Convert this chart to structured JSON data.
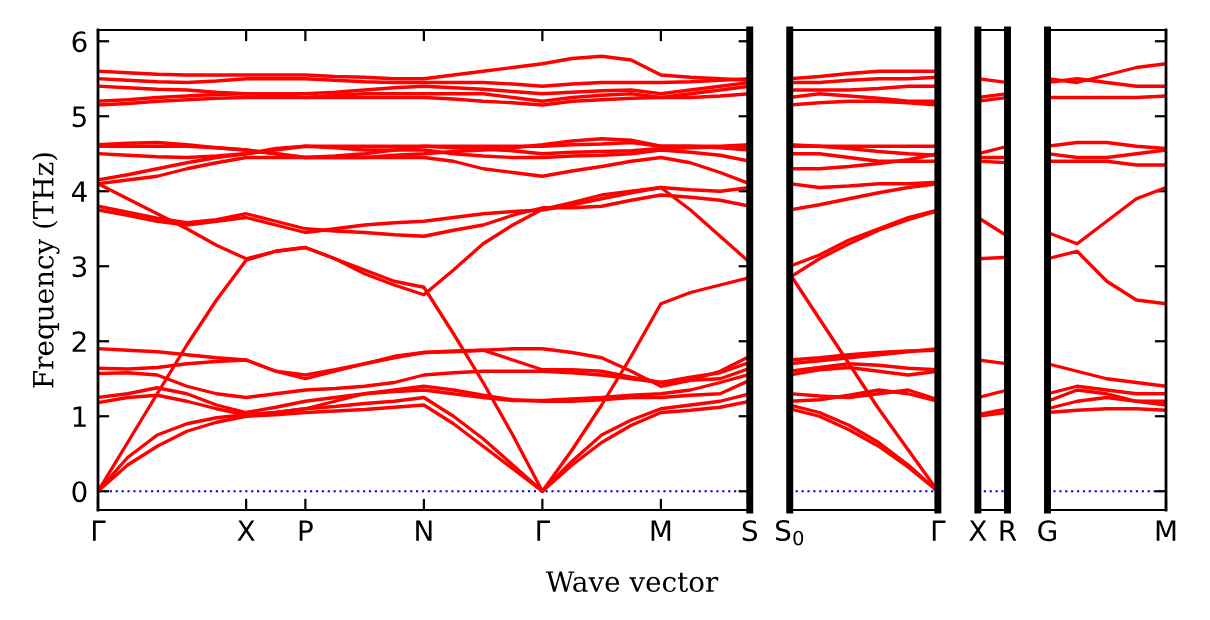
{
  "chart_data": [
    {
      "type": "line",
      "ylabel": "Frequency (THz)",
      "xlabel": "Wave vector",
      "line_style": "solid",
      "marker": "none",
      "grid": false,
      "categories": [
        "Γ",
        null,
        null,
        null,
        null,
        "X",
        null,
        "P",
        null,
        null,
        null,
        "N",
        null,
        null,
        null,
        "Γ",
        null,
        null,
        null,
        "M",
        null,
        null,
        "S"
      ],
      "ylim": [
        -0.25,
        6.15
      ],
      "yticks": [
        0,
        1,
        2,
        3,
        4,
        5,
        6
      ],
      "ref_lines": [
        {
          "axis": "y",
          "value": 0,
          "label": null,
          "color": "#0000ff",
          "line_style": "dotted"
        }
      ],
      "series": [
        {
          "color": "#ff0000",
          "values": [
            0,
            0.35,
            0.6,
            0.8,
            0.92,
            1.0,
            1.02,
            1.05,
            1.07,
            1.09,
            1.12,
            1.15,
            0.9,
            0.6,
            0.3,
            0,
            0.35,
            0.65,
            0.88,
            1.05,
            1.08,
            1.12,
            1.2
          ]
        },
        {
          "color": "#ff0000",
          "values": [
            0,
            0.45,
            0.75,
            0.9,
            0.98,
            1.02,
            1.05,
            1.1,
            1.13,
            1.17,
            1.2,
            1.25,
            1.0,
            0.7,
            0.35,
            0,
            0.4,
            0.75,
            0.95,
            1.1,
            1.15,
            1.2,
            1.3
          ]
        },
        {
          "color": "#ff0000",
          "values": [
            0,
            0.65,
            1.3,
            1.95,
            2.55,
            3.08,
            3.2,
            3.25,
            3.1,
            2.95,
            2.8,
            2.72,
            2.1,
            1.45,
            0.75,
            0,
            0.55,
            1.15,
            1.8,
            2.5,
            2.65,
            2.75,
            2.85
          ]
        },
        {
          "color": "#ff0000",
          "values": [
            1.18,
            1.25,
            1.28,
            1.2,
            1.1,
            1.02,
            1.05,
            1.1,
            1.2,
            1.3,
            1.35,
            1.4,
            1.35,
            1.28,
            1.22,
            1.2,
            1.2,
            1.22,
            1.25,
            1.25,
            1.28,
            1.3,
            1.48
          ]
        },
        {
          "color": "#ff0000",
          "values": [
            1.25,
            1.3,
            1.38,
            1.3,
            1.15,
            1.05,
            1.12,
            1.2,
            1.25,
            1.3,
            1.33,
            1.35,
            1.3,
            1.25,
            1.21,
            1.21,
            1.23,
            1.25,
            1.28,
            1.3,
            1.35,
            1.45,
            1.56
          ]
        },
        {
          "color": "#ff0000",
          "values": [
            1.57,
            1.58,
            1.55,
            1.4,
            1.3,
            1.25,
            1.3,
            1.35,
            1.37,
            1.4,
            1.45,
            1.55,
            1.58,
            1.6,
            1.6,
            1.6,
            1.58,
            1.55,
            1.5,
            1.45,
            1.48,
            1.5,
            1.64
          ]
        },
        {
          "color": "#ff0000",
          "values": [
            1.64,
            1.63,
            1.65,
            1.7,
            1.73,
            1.75,
            1.6,
            1.5,
            1.6,
            1.7,
            1.78,
            1.85,
            1.87,
            1.88,
            1.75,
            1.62,
            1.62,
            1.6,
            1.52,
            1.45,
            1.52,
            1.58,
            1.72
          ]
        },
        {
          "color": "#ff0000",
          "values": [
            1.9,
            1.88,
            1.86,
            1.82,
            1.78,
            1.75,
            1.6,
            1.55,
            1.62,
            1.7,
            1.8,
            1.85,
            1.86,
            1.88,
            1.9,
            1.9,
            1.85,
            1.78,
            1.6,
            1.4,
            1.48,
            1.6,
            1.8
          ]
        },
        {
          "color": "#ff0000",
          "values": [
            3.75,
            3.68,
            3.6,
            3.55,
            3.6,
            3.65,
            3.55,
            3.45,
            3.5,
            3.55,
            3.58,
            3.6,
            3.65,
            3.7,
            3.73,
            3.75,
            3.82,
            3.9,
            3.98,
            4.05,
            3.75,
            3.4,
            3.05
          ]
        },
        {
          "color": "#ff0000",
          "values": [
            3.8,
            3.72,
            3.64,
            3.58,
            3.62,
            3.7,
            3.6,
            3.5,
            3.47,
            3.45,
            3.42,
            3.4,
            3.48,
            3.55,
            3.68,
            3.78,
            3.78,
            3.8,
            3.88,
            3.95,
            3.92,
            3.88,
            3.8
          ]
        },
        {
          "color": "#ff0000",
          "values": [
            4.1,
            3.9,
            3.7,
            3.5,
            3.28,
            3.1,
            3.2,
            3.25,
            3.1,
            2.9,
            2.75,
            2.62,
            2.95,
            3.3,
            3.55,
            3.76,
            3.85,
            3.95,
            4.0,
            4.05,
            4.02,
            4.0,
            4.05
          ]
        },
        {
          "color": "#ff0000",
          "values": [
            4.1,
            4.15,
            4.2,
            4.3,
            4.38,
            4.45,
            4.45,
            4.45,
            4.45,
            4.45,
            4.45,
            4.45,
            4.4,
            4.3,
            4.25,
            4.2,
            4.27,
            4.33,
            4.4,
            4.45,
            4.38,
            4.25,
            4.1
          ]
        },
        {
          "color": "#ff0000",
          "values": [
            4.15,
            4.22,
            4.3,
            4.38,
            4.45,
            4.5,
            4.57,
            4.6,
            4.58,
            4.55,
            4.55,
            4.55,
            4.5,
            4.47,
            4.45,
            4.45,
            4.47,
            4.48,
            4.5,
            4.55,
            4.52,
            4.48,
            4.4
          ]
        },
        {
          "color": "#ff0000",
          "values": [
            4.5,
            4.48,
            4.46,
            4.45,
            4.47,
            4.5,
            4.55,
            4.6,
            4.6,
            4.6,
            4.6,
            4.6,
            4.58,
            4.56,
            4.54,
            4.5,
            4.52,
            4.53,
            4.54,
            4.57,
            4.58,
            4.59,
            4.6
          ]
        },
        {
          "color": "#ff0000",
          "values": [
            4.6,
            4.6,
            4.6,
            4.6,
            4.58,
            4.55,
            4.5,
            4.45,
            4.47,
            4.5,
            4.55,
            4.6,
            4.6,
            4.6,
            4.6,
            4.6,
            4.62,
            4.63,
            4.65,
            4.6,
            4.6,
            4.6,
            4.62
          ]
        },
        {
          "color": "#ff0000",
          "values": [
            4.62,
            4.64,
            4.65,
            4.62,
            4.58,
            4.55,
            4.5,
            4.45,
            4.45,
            4.45,
            4.48,
            4.5,
            4.53,
            4.55,
            4.58,
            4.62,
            4.67,
            4.7,
            4.68,
            4.6,
            4.6,
            4.58,
            4.55
          ]
        },
        {
          "color": "#ff0000",
          "values": [
            5.15,
            5.17,
            5.2,
            5.22,
            5.24,
            5.25,
            5.25,
            5.25,
            5.25,
            5.25,
            5.25,
            5.25,
            5.23,
            5.2,
            5.18,
            5.15,
            5.2,
            5.22,
            5.24,
            5.25,
            5.25,
            5.27,
            5.3
          ]
        },
        {
          "color": "#ff0000",
          "values": [
            5.2,
            5.22,
            5.25,
            5.27,
            5.29,
            5.3,
            5.28,
            5.25,
            5.28,
            5.3,
            5.3,
            5.3,
            5.3,
            5.3,
            5.25,
            5.2,
            5.25,
            5.28,
            5.3,
            5.25,
            5.3,
            5.35,
            5.4
          ]
        },
        {
          "color": "#ff0000",
          "values": [
            5.4,
            5.38,
            5.36,
            5.35,
            5.32,
            5.3,
            5.3,
            5.3,
            5.32,
            5.35,
            5.38,
            5.4,
            5.38,
            5.36,
            5.33,
            5.3,
            5.32,
            5.34,
            5.35,
            5.3,
            5.35,
            5.4,
            5.45
          ]
        },
        {
          "color": "#ff0000",
          "values": [
            5.5,
            5.48,
            5.46,
            5.45,
            5.47,
            5.5,
            5.5,
            5.5,
            5.48,
            5.46,
            5.45,
            5.45,
            5.45,
            5.45,
            5.43,
            5.4,
            5.43,
            5.45,
            5.45,
            5.45,
            5.46,
            5.48,
            5.5
          ]
        },
        {
          "color": "#ff0000",
          "values": [
            5.6,
            5.58,
            5.56,
            5.55,
            5.55,
            5.55,
            5.55,
            5.55,
            5.53,
            5.52,
            5.5,
            5.5,
            5.55,
            5.6,
            5.65,
            5.7,
            5.77,
            5.8,
            5.75,
            5.55,
            5.52,
            5.5,
            5.48
          ]
        }
      ]
    },
    {
      "type": "line",
      "line_style": "solid",
      "marker": "none",
      "grid": false,
      "tick_labels": "x",
      "categories": [
        "S$_{0}$",
        null,
        null,
        null,
        null,
        "Γ"
      ],
      "ylim": [
        -0.25,
        6.15
      ],
      "ref_lines": [
        {
          "axis": "y",
          "value": 0,
          "label": null,
          "color": "#0000ff",
          "line_style": "dotted"
        }
      ],
      "series": [
        {
          "color": "#ff0000",
          "values": [
            1.1,
            1.0,
            0.82,
            0.6,
            0.32,
            0
          ]
        },
        {
          "color": "#ff0000",
          "values": [
            1.15,
            1.05,
            0.88,
            0.65,
            0.35,
            0
          ]
        },
        {
          "color": "#ff0000",
          "values": [
            2.9,
            2.3,
            1.7,
            1.1,
            0.55,
            0
          ]
        },
        {
          "color": "#ff0000",
          "values": [
            1.2,
            1.22,
            1.28,
            1.35,
            1.3,
            1.2
          ]
        },
        {
          "color": "#ff0000",
          "values": [
            1.3,
            1.27,
            1.25,
            1.3,
            1.35,
            1.22
          ]
        },
        {
          "color": "#ff0000",
          "values": [
            1.55,
            1.62,
            1.65,
            1.6,
            1.55,
            1.6
          ]
        },
        {
          "color": "#ff0000",
          "values": [
            1.6,
            1.65,
            1.7,
            1.68,
            1.64,
            1.62
          ]
        },
        {
          "color": "#ff0000",
          "values": [
            1.7,
            1.74,
            1.78,
            1.82,
            1.86,
            1.9
          ]
        },
        {
          "color": "#ff0000",
          "values": [
            1.75,
            1.78,
            1.82,
            1.85,
            1.87,
            1.88
          ]
        },
        {
          "color": "#ff0000",
          "values": [
            3.0,
            3.15,
            3.35,
            3.5,
            3.65,
            3.75
          ]
        },
        {
          "color": "#ff0000",
          "values": [
            2.85,
            3.1,
            3.3,
            3.48,
            3.62,
            3.74
          ]
        },
        {
          "color": "#ff0000",
          "values": [
            3.75,
            3.82,
            3.9,
            3.98,
            4.05,
            4.1
          ]
        },
        {
          "color": "#ff0000",
          "values": [
            4.1,
            4.05,
            4.07,
            4.1,
            4.1,
            4.12
          ]
        },
        {
          "color": "#ff0000",
          "values": [
            4.3,
            4.3,
            4.33,
            4.37,
            4.42,
            4.5
          ]
        },
        {
          "color": "#ff0000",
          "values": [
            4.5,
            4.5,
            4.45,
            4.4,
            4.4,
            4.4
          ]
        },
        {
          "color": "#ff0000",
          "values": [
            4.6,
            4.6,
            4.57,
            4.53,
            4.5,
            4.48
          ]
        },
        {
          "color": "#ff0000",
          "values": [
            4.62,
            4.6,
            4.6,
            4.6,
            4.6,
            4.6
          ]
        },
        {
          "color": "#ff0000",
          "values": [
            5.15,
            5.18,
            5.2,
            5.2,
            5.18,
            5.15
          ]
        },
        {
          "color": "#ff0000",
          "values": [
            5.25,
            5.3,
            5.27,
            5.24,
            5.2,
            5.2
          ]
        },
        {
          "color": "#ff0000",
          "values": [
            5.35,
            5.35,
            5.35,
            5.37,
            5.4,
            5.4
          ]
        },
        {
          "color": "#ff0000",
          "values": [
            5.45,
            5.45,
            5.48,
            5.5,
            5.5,
            5.52
          ]
        },
        {
          "color": "#ff0000",
          "values": [
            5.5,
            5.53,
            5.57,
            5.6,
            5.6,
            5.6
          ]
        }
      ]
    },
    {
      "type": "line",
      "line_style": "solid",
      "marker": "none",
      "tick_labels": "x",
      "categories": [
        "X",
        "R"
      ],
      "ylim": [
        -0.25,
        6.15
      ],
      "ref_lines": [
        {
          "axis": "y",
          "value": 0,
          "label": null,
          "color": "#0000ff",
          "line_style": "dotted"
        }
      ],
      "series": [
        {
          "color": "#ff0000",
          "values": [
            1.0,
            1.05
          ]
        },
        {
          "color": "#ff0000",
          "values": [
            1.02,
            1.1
          ]
        },
        {
          "color": "#ff0000",
          "values": [
            1.25,
            1.35
          ]
        },
        {
          "color": "#ff0000",
          "values": [
            1.75,
            1.7
          ]
        },
        {
          "color": "#ff0000",
          "values": [
            3.1,
            3.12
          ]
        },
        {
          "color": "#ff0000",
          "values": [
            3.65,
            3.4
          ]
        },
        {
          "color": "#ff0000",
          "values": [
            4.4,
            4.38
          ]
        },
        {
          "color": "#ff0000",
          "values": [
            4.45,
            4.45
          ]
        },
        {
          "color": "#ff0000",
          "values": [
            4.5,
            4.6
          ]
        },
        {
          "color": "#ff0000",
          "values": [
            5.2,
            5.25
          ]
        },
        {
          "color": "#ff0000",
          "values": [
            5.25,
            5.3
          ]
        },
        {
          "color": "#ff0000",
          "values": [
            5.5,
            5.45
          ]
        }
      ]
    },
    {
      "type": "line",
      "line_style": "solid",
      "marker": "none",
      "grid": false,
      "tick_labels": "x",
      "categories": [
        "G",
        null,
        null,
        null,
        "M"
      ],
      "ylim": [
        -0.25,
        6.15
      ],
      "yticks": [
        {
          "value": 0,
          "label": null
        },
        {
          "value": 1,
          "label": null
        },
        {
          "value": 2,
          "label": null
        },
        {
          "value": 3,
          "label": null
        },
        {
          "value": 4,
          "label": null
        },
        {
          "value": 5,
          "label": null
        },
        {
          "value": 6,
          "label": null
        }
      ],
      "ref_lines": [
        {
          "axis": "y",
          "value": 0,
          "label": null,
          "color": "#0000ff",
          "line_style": "dotted"
        }
      ],
      "series": [
        {
          "color": "#ff0000",
          "values": [
            1.05,
            1.08,
            1.1,
            1.1,
            1.08
          ]
        },
        {
          "color": "#ff0000",
          "values": [
            1.1,
            1.2,
            1.25,
            1.2,
            1.15
          ]
        },
        {
          "color": "#ff0000",
          "values": [
            1.2,
            1.35,
            1.3,
            1.2,
            1.2
          ]
        },
        {
          "color": "#ff0000",
          "values": [
            1.3,
            1.4,
            1.35,
            1.3,
            1.3
          ]
        },
        {
          "color": "#ff0000",
          "values": [
            1.7,
            1.6,
            1.5,
            1.45,
            1.4
          ]
        },
        {
          "color": "#ff0000",
          "values": [
            3.1,
            3.2,
            2.8,
            2.55,
            2.5
          ]
        },
        {
          "color": "#ff0000",
          "values": [
            3.45,
            3.3,
            3.6,
            3.9,
            4.05
          ]
        },
        {
          "color": "#ff0000",
          "values": [
            4.4,
            4.4,
            4.4,
            4.35,
            4.35
          ]
        },
        {
          "color": "#ff0000",
          "values": [
            4.5,
            4.45,
            4.45,
            4.5,
            4.55
          ]
        },
        {
          "color": "#ff0000",
          "values": [
            4.6,
            4.65,
            4.65,
            4.6,
            4.57
          ]
        },
        {
          "color": "#ff0000",
          "values": [
            5.25,
            5.25,
            5.25,
            5.25,
            5.27
          ]
        },
        {
          "color": "#ff0000",
          "values": [
            5.45,
            5.5,
            5.45,
            5.4,
            5.4
          ]
        },
        {
          "color": "#ff0000",
          "values": [
            5.5,
            5.45,
            5.55,
            5.65,
            5.7
          ]
        }
      ]
    }
  ]
}
